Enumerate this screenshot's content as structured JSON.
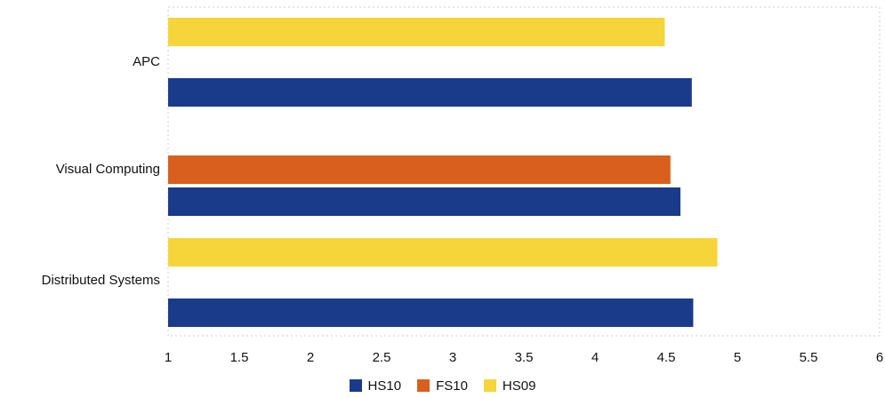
{
  "chart_data": {
    "type": "bar",
    "orientation": "horizontal",
    "title": "",
    "xlabel": "",
    "ylabel": "",
    "categories": [
      "APC",
      "Visual Computing",
      "Distributed Systems"
    ],
    "series": [
      {
        "name": "HS10",
        "color": "#1a3a8a",
        "values": [
          4.68,
          4.6,
          4.69
        ]
      },
      {
        "name": "FS10",
        "color": "#d95f1e",
        "values": [
          null,
          4.53,
          null
        ]
      },
      {
        "name": "HS09",
        "color": "#f5d53a",
        "values": [
          4.49,
          null,
          4.86
        ]
      }
    ],
    "xlim": [
      1,
      6
    ],
    "xticks": [
      "1",
      "1.5",
      "2",
      "2.5",
      "3",
      "3.5",
      "4",
      "4.5",
      "5",
      "5.5",
      "6"
    ],
    "legend_position": "bottom",
    "grid": false
  }
}
